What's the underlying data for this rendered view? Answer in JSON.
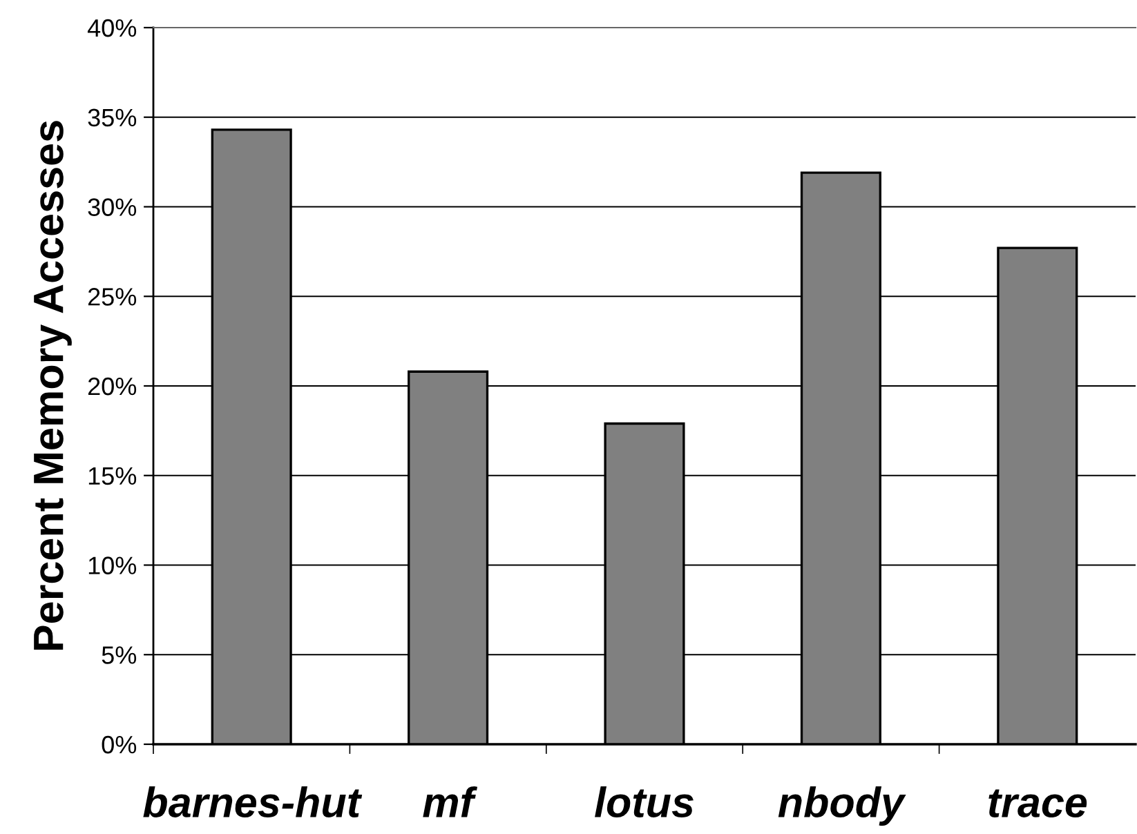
{
  "chart_data": {
    "type": "bar",
    "ylabel": "Percent Memory Accesses",
    "categories": [
      "barnes-hut",
      "mf",
      "lotus",
      "nbody",
      "trace"
    ],
    "values": [
      34.3,
      20.8,
      17.9,
      31.9,
      27.7
    ],
    "color": "#808080",
    "ylim": [
      0,
      40
    ],
    "yticks": [
      {
        "value": 0,
        "label": "0%"
      },
      {
        "value": 5,
        "label": "5%"
      },
      {
        "value": 10,
        "label": "10%"
      },
      {
        "value": 15,
        "label": "15%"
      },
      {
        "value": 20,
        "label": "20%"
      },
      {
        "value": 25,
        "label": "25%"
      },
      {
        "value": 30,
        "label": "30%"
      },
      {
        "value": 35,
        "label": "35%"
      },
      {
        "value": 40,
        "label": "40%"
      }
    ],
    "grid": "y"
  }
}
